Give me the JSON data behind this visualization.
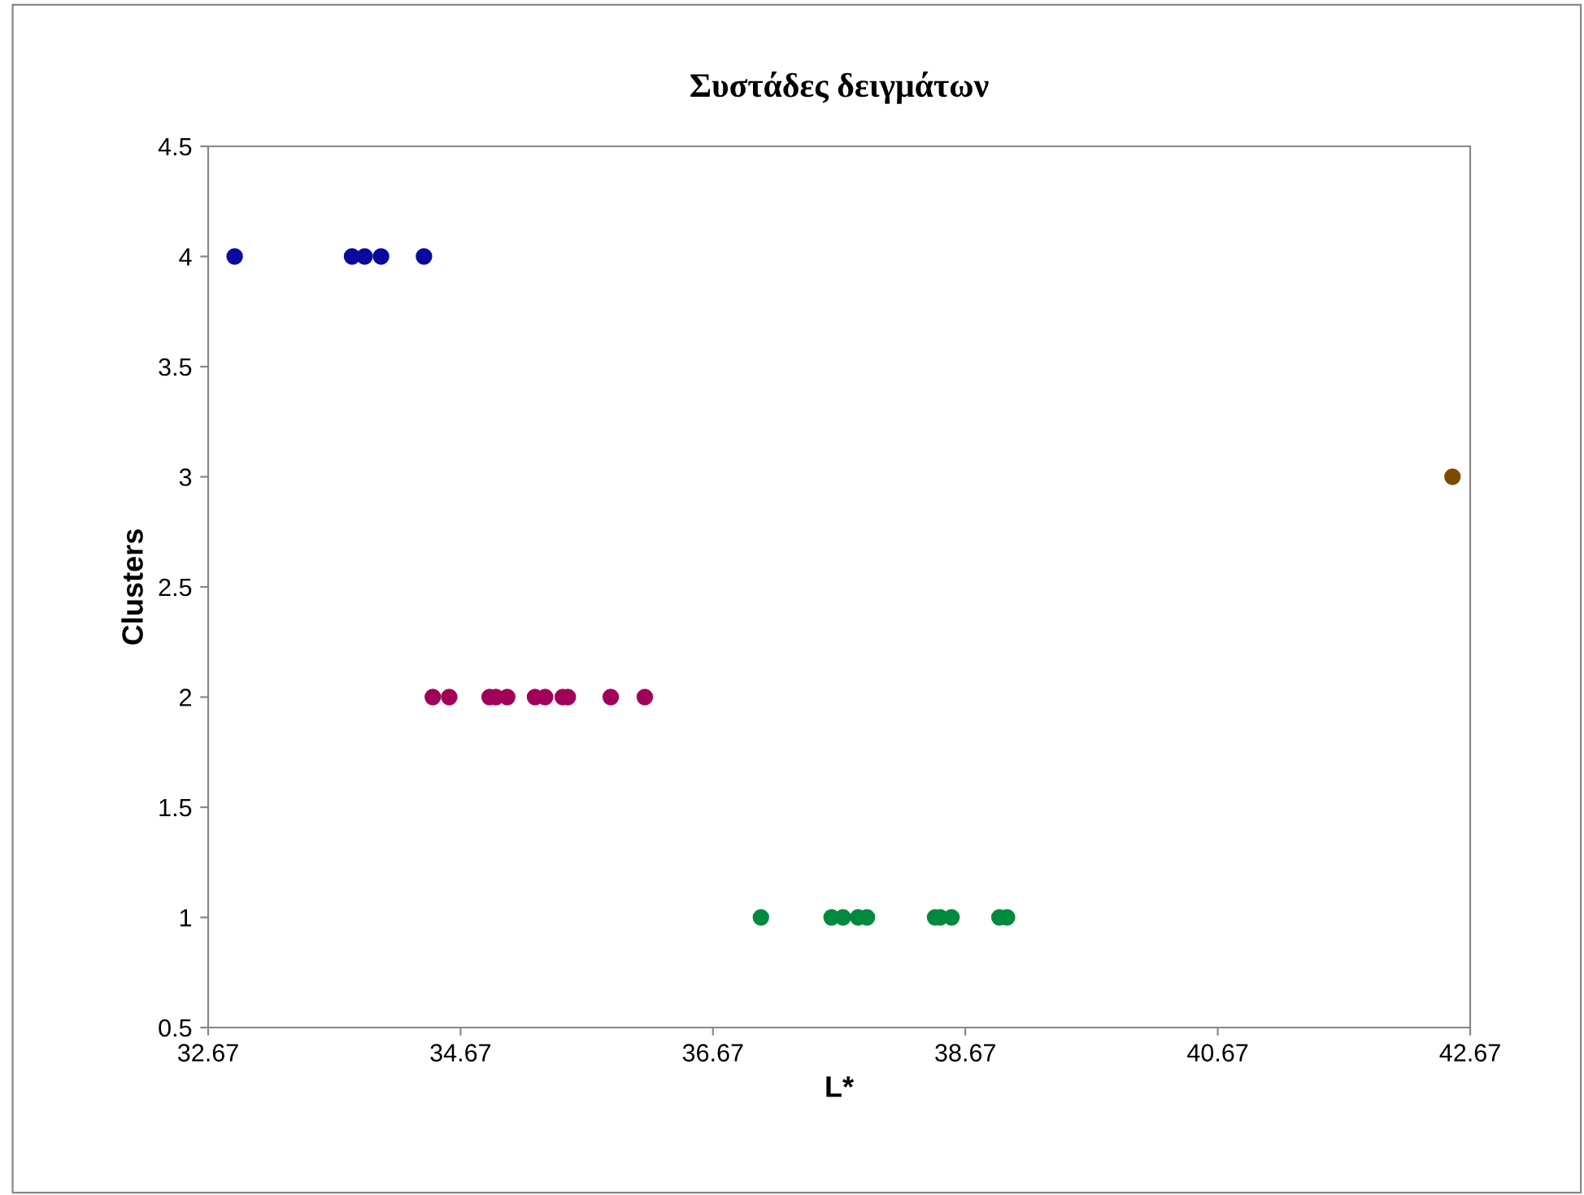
{
  "chart_data": {
    "type": "scatter",
    "title": "Συστάδες δειγμάτων",
    "xlabel": "L*",
    "ylabel": "Clusters",
    "xlim": [
      32.67,
      42.67
    ],
    "xticks": [
      32.67,
      34.67,
      36.67,
      38.67,
      40.67,
      42.67
    ],
    "ylim": [
      0.5,
      4.5
    ],
    "yticks": [
      0.5,
      1,
      1.5,
      2,
      2.5,
      3,
      3.5,
      4,
      4.5
    ],
    "grid": false,
    "legend": false,
    "marker": "circle",
    "series": [
      {
        "color": "#0a0aa0",
        "x": [
          32.88,
          33.81,
          33.91,
          34.04,
          34.38
        ],
        "values": [
          4,
          4,
          4,
          4,
          4
        ]
      },
      {
        "color": "#a0005a",
        "x": [
          34.45,
          34.58,
          34.9,
          34.95,
          35.04,
          35.26,
          35.34,
          35.48,
          35.52,
          35.86,
          36.13
        ],
        "values": [
          2,
          2,
          2,
          2,
          2,
          2,
          2,
          2,
          2,
          2,
          2
        ]
      },
      {
        "color": "#008a3e",
        "x": [
          37.05,
          37.61,
          37.7,
          37.82,
          37.89,
          38.43,
          38.47,
          38.56,
          38.94,
          39.0
        ],
        "values": [
          1,
          1,
          1,
          1,
          1,
          1,
          1,
          1,
          1,
          1
        ]
      },
      {
        "color": "#7f4a00",
        "x": [
          42.53
        ],
        "values": [
          3
        ]
      }
    ]
  }
}
